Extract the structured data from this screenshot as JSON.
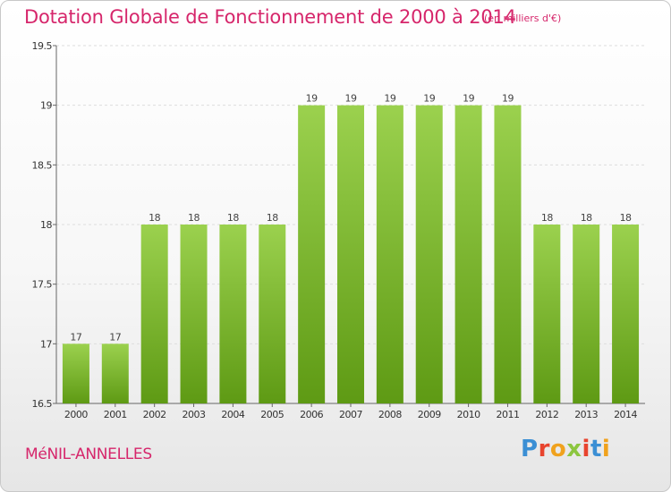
{
  "title": "Dotation Globale de Fonctionnement de 2000 à 2014",
  "unit": "(en milliers d'€)",
  "commune": "MéNIL-ANNELLES",
  "logo": {
    "letters": [
      "P",
      "r",
      "o",
      "x",
      "i",
      "t",
      "i"
    ],
    "colors": [
      "#3b8fd4",
      "#e8442e",
      "#f0a21e",
      "#8cc63f",
      "#e8442e",
      "#3b8fd4",
      "#f0a21e"
    ]
  },
  "colors": {
    "title": "#d6266b",
    "bar_top": "#9bd14e",
    "bar_bottom": "#5e9a14"
  },
  "chart_data": {
    "type": "bar",
    "categories": [
      "2000",
      "2001",
      "2002",
      "2003",
      "2004",
      "2005",
      "2006",
      "2007",
      "2008",
      "2009",
      "2010",
      "2011",
      "2012",
      "2013",
      "2014"
    ],
    "values": [
      17,
      17,
      18,
      18,
      18,
      18,
      19,
      19,
      19,
      19,
      19,
      19,
      18,
      18,
      18
    ],
    "value_labels": [
      "17",
      "17",
      "18",
      "18",
      "18",
      "18",
      "19",
      "19",
      "19",
      "19",
      "19",
      "19",
      "18",
      "18",
      "18"
    ],
    "ylim": [
      16.5,
      19.5
    ],
    "yticks": [
      16.5,
      17,
      17.5,
      18,
      18.5,
      19,
      19.5
    ],
    "ytick_labels": [
      "16.5",
      "17",
      "17.5",
      "18",
      "18.5",
      "19",
      "19.5"
    ],
    "grid": true,
    "xlabel": "",
    "ylabel": ""
  }
}
